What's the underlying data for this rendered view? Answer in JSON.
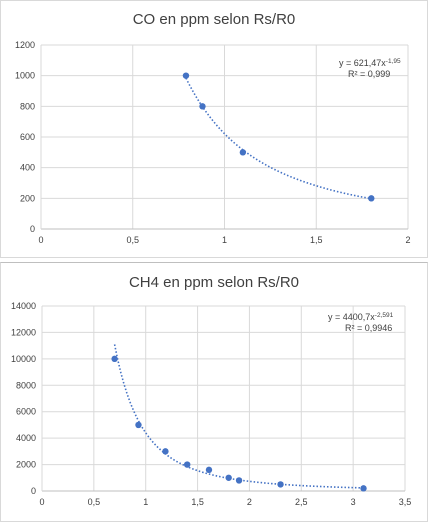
{
  "chart_data": [
    {
      "type": "scatter",
      "title": "CO en ppm selon Rs/R0",
      "xlabel": "",
      "ylabel": "",
      "xlim": [
        0,
        2
      ],
      "ylim": [
        0,
        1200
      ],
      "x_ticks": [
        "0",
        "0,5",
        "1",
        "1,5",
        "2"
      ],
      "y_ticks": [
        "0",
        "200",
        "400",
        "600",
        "800",
        "1000",
        "1200"
      ],
      "points": [
        {
          "x": 0.79,
          "y": 1000
        },
        {
          "x": 0.88,
          "y": 800
        },
        {
          "x": 1.1,
          "y": 500
        },
        {
          "x": 1.8,
          "y": 200
        }
      ],
      "trendline": {
        "type": "power",
        "a": 621.47,
        "b": -1.95,
        "x_from": 0.79,
        "x_to": 1.8
      },
      "equation": "y = 621,47x",
      "equation_exp": "-1,95",
      "r2": "R² = 0,999",
      "color": "#4472c4",
      "grid": true
    },
    {
      "type": "scatter",
      "title": "CH4 en ppm selon Rs/R0",
      "xlabel": "",
      "ylabel": "",
      "xlim": [
        0,
        3.5
      ],
      "ylim": [
        0,
        14000
      ],
      "x_ticks": [
        "0",
        "0,5",
        "1",
        "1,5",
        "2",
        "2,5",
        "3",
        "3,5"
      ],
      "y_ticks": [
        "0",
        "2000",
        "4000",
        "6000",
        "8000",
        "10000",
        "12000",
        "14000"
      ],
      "points": [
        {
          "x": 0.7,
          "y": 10000
        },
        {
          "x": 0.93,
          "y": 5000
        },
        {
          "x": 1.19,
          "y": 3000
        },
        {
          "x": 1.4,
          "y": 2000
        },
        {
          "x": 1.61,
          "y": 1600
        },
        {
          "x": 1.8,
          "y": 1000
        },
        {
          "x": 1.9,
          "y": 800
        },
        {
          "x": 2.3,
          "y": 500
        },
        {
          "x": 3.1,
          "y": 200
        }
      ],
      "trendline": {
        "type": "power",
        "a": 4400.7,
        "b": -2.591,
        "x_from": 0.7,
        "x_to": 3.1
      },
      "equation": "y = 4400,7x",
      "equation_exp": "-2,591",
      "r2": "R² = 0,9946",
      "color": "#4472c4",
      "grid": true
    }
  ]
}
